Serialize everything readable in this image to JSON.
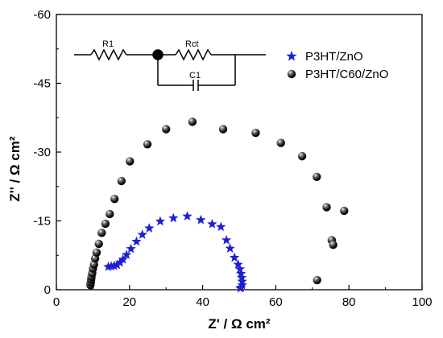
{
  "chart_data": {
    "type": "scatter",
    "xlabel": "Z' /  Ω cm²",
    "ylabel": "Z'' /  Ω cm²",
    "xlim": [
      0,
      100
    ],
    "ylim": [
      0,
      -60
    ],
    "x_ticks": [
      "0",
      "20",
      "40",
      "60",
      "80",
      "100"
    ],
    "y_ticks": [
      "0",
      "-15",
      "-30",
      "-45",
      "-60"
    ],
    "legend_position": "top-right",
    "grid": false,
    "circuit": {
      "r1_label": "R1",
      "rct_label": "Rct",
      "c1_label": "C1"
    },
    "series": [
      {
        "name": "P3HT/ZnO",
        "marker": "star",
        "color": "#1f1fd1",
        "points": [
          [
            14.2,
            -5.0
          ],
          [
            15.0,
            -5.1
          ],
          [
            15.8,
            -5.2
          ],
          [
            16.6,
            -5.4
          ],
          [
            17.4,
            -5.9
          ],
          [
            18.2,
            -6.6
          ],
          [
            19.2,
            -7.6
          ],
          [
            20.4,
            -8.9
          ],
          [
            21.9,
            -10.5
          ],
          [
            23.5,
            -12.0
          ],
          [
            25.4,
            -13.4
          ],
          [
            28.4,
            -14.9
          ],
          [
            32.0,
            -15.6
          ],
          [
            35.8,
            -16.0
          ],
          [
            39.5,
            -15.2
          ],
          [
            42.6,
            -14.3
          ],
          [
            45.0,
            -13.7
          ],
          [
            46.5,
            -10.8
          ],
          [
            47.5,
            -9.0
          ],
          [
            48.7,
            -7.0
          ],
          [
            49.7,
            -5.5
          ],
          [
            50.2,
            -4.5
          ],
          [
            50.5,
            -3.5
          ],
          [
            50.7,
            -2.6
          ],
          [
            50.8,
            -1.8
          ],
          [
            50.8,
            -1.0
          ],
          [
            50.5,
            -0.5
          ],
          [
            50.3,
            -0.3
          ]
        ]
      },
      {
        "name": "P3HT/C60/ZnO",
        "marker": "sphere",
        "color": "#111111",
        "points": [
          [
            9.3,
            -1.0
          ],
          [
            9.4,
            -1.6
          ],
          [
            9.5,
            -2.2
          ],
          [
            9.6,
            -2.8
          ],
          [
            9.8,
            -3.6
          ],
          [
            10.0,
            -4.6
          ],
          [
            10.3,
            -5.5
          ],
          [
            10.6,
            -6.8
          ],
          [
            11.0,
            -8.1
          ],
          [
            11.6,
            -10.0
          ],
          [
            12.4,
            -12.4
          ],
          [
            13.4,
            -14.4
          ],
          [
            14.6,
            -16.5
          ],
          [
            15.9,
            -19.8
          ],
          [
            17.8,
            -23.7
          ],
          [
            20.1,
            -28.0
          ],
          [
            24.9,
            -31.7
          ],
          [
            30.0,
            -35.0
          ],
          [
            37.2,
            -36.6
          ],
          [
            45.6,
            -35.0
          ],
          [
            54.5,
            -34.2
          ],
          [
            61.4,
            -32.0
          ],
          [
            67.2,
            -29.1
          ],
          [
            71.2,
            -24.6
          ],
          [
            73.9,
            -18.0
          ],
          [
            78.7,
            -17.2
          ],
          [
            75.3,
            -10.8
          ],
          [
            75.7,
            -9.8
          ],
          [
            71.3,
            -2.1
          ]
        ]
      }
    ]
  }
}
